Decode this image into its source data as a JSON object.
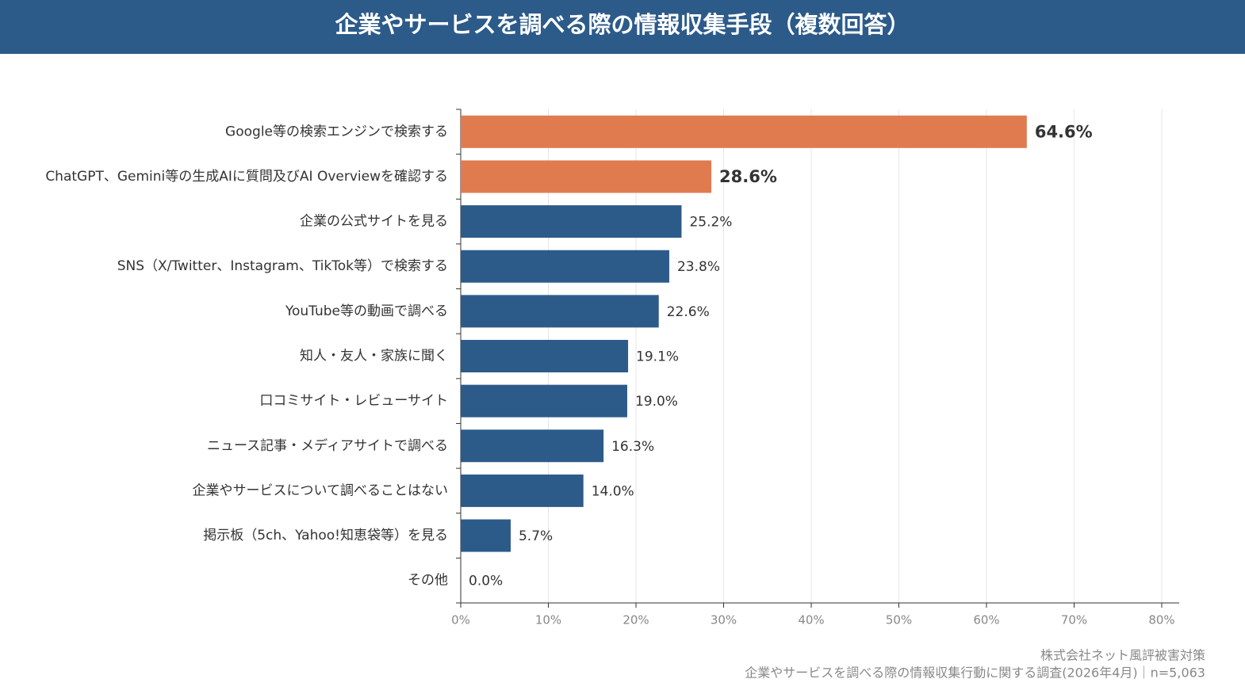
{
  "chart_data": {
    "type": "barh",
    "title": "企業やサービスを調べる際の情報収集手段（複数回答）",
    "categories": [
      "Google等の検索エンジンで検索する",
      "ChatGPT、Gemini等の生成AIに質問及びAI Overviewを確認する",
      "企業の公式サイトを見る",
      "SNS（X/Twitter、Instagram、TikTok等）で検索する",
      "YouTube等の動画で調べる",
      "知人・友人・家族に聞く",
      "口コミサイト・レビューサイト",
      "ニュース記事・メディアサイトで調べる",
      "企業やサービスについて調べることはない",
      "掲示板（5ch、Yahoo!知恵袋等）を見る",
      "その他"
    ],
    "values": [
      64.6,
      28.6,
      25.2,
      23.8,
      22.6,
      19.1,
      19.0,
      16.3,
      14.0,
      5.7,
      0.0
    ],
    "value_labels": [
      "64.6%",
      "28.6%",
      "25.2%",
      "23.8%",
      "22.6%",
      "19.1%",
      "19.0%",
      "16.3%",
      "14.0%",
      "5.7%",
      "0.0%"
    ],
    "colors": [
      "#e07b50",
      "#e07b50",
      "#2c5b8a",
      "#2c5b8a",
      "#2c5b8a",
      "#2c5b8a",
      "#2c5b8a",
      "#2c5b8a",
      "#2c5b8a",
      "#2c5b8a",
      "#2c5b8a"
    ],
    "xlim": [
      0,
      80
    ],
    "xticks": [
      {
        "value": 0,
        "label": "0%"
      },
      {
        "value": 10,
        "label": "10%"
      },
      {
        "value": 20,
        "label": "20%"
      },
      {
        "value": 30,
        "label": "30%"
      },
      {
        "value": 40,
        "label": "40%"
      },
      {
        "value": 50,
        "label": "50%"
      },
      {
        "value": 60,
        "label": "60%"
      },
      {
        "value": 70,
        "label": "70%"
      },
      {
        "value": 80,
        "label": "80%"
      }
    ],
    "grid": true,
    "source": [
      "株式会社ネット風評被害対策",
      "企業やサービスを調べる際の情報収集行動に関する調査(2026年4月)｜n=5,063"
    ]
  }
}
